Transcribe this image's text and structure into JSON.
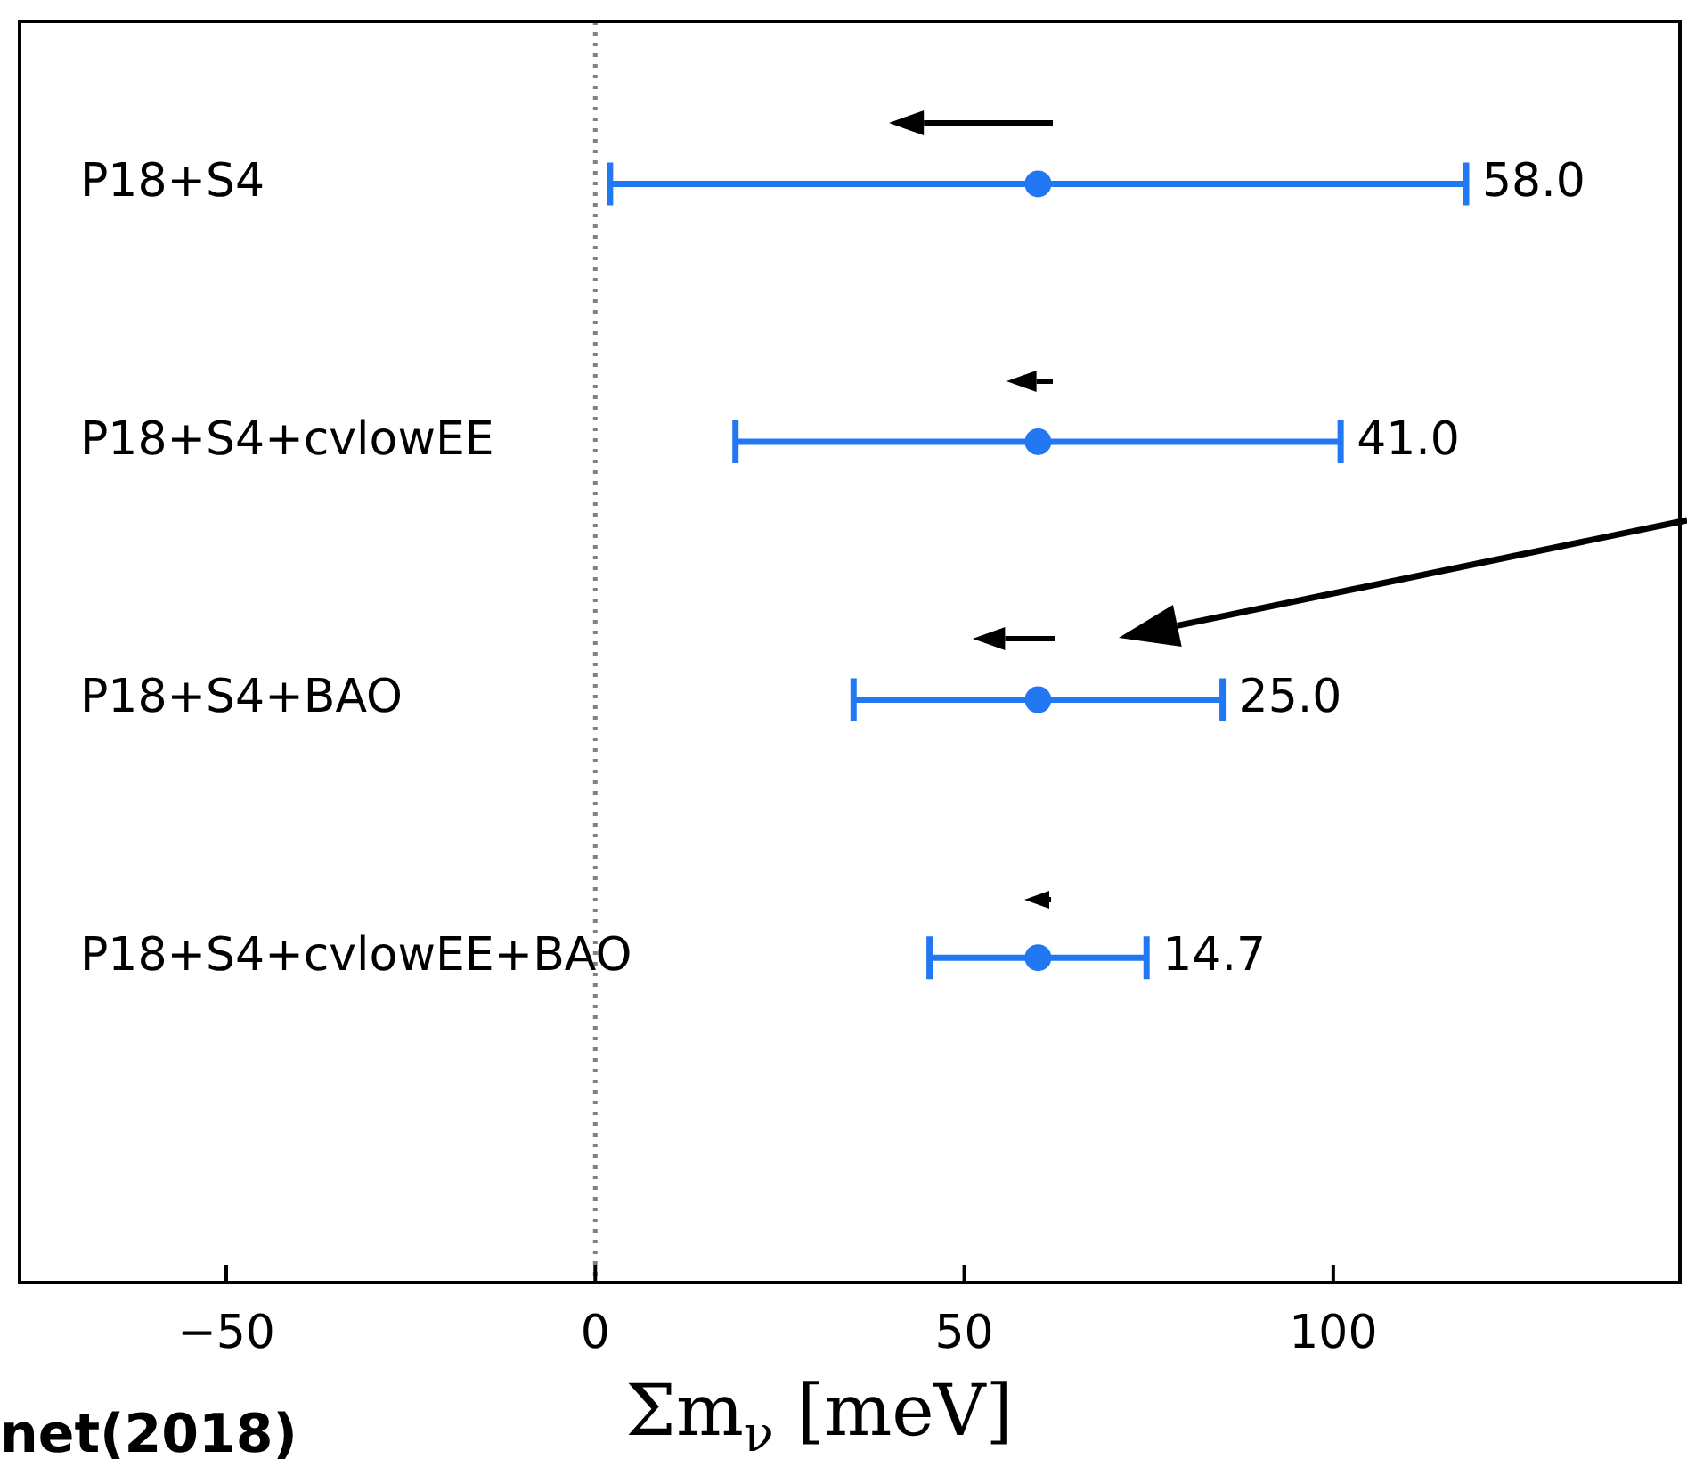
{
  "chart_data": {
    "type": "scatter",
    "orientation": "horizontal",
    "categories": [
      "P18+S4",
      "P18+S4+cvlowEE",
      "P18+S4+BAO",
      "P18+S4+cvlowEE+BAO"
    ],
    "values": [
      60,
      60,
      60,
      60
    ],
    "errors": [
      58,
      41,
      25,
      14.7
    ],
    "color": "#2277f2",
    "marker": "circle",
    "xlim": [
      -78,
      146
    ],
    "xticks": [
      -50,
      0,
      50,
      100
    ],
    "xlabel": "Σm$_{ν}$ [meV]",
    "ref_lines": [
      {
        "axis": "x",
        "value": 0,
        "color": "#808080",
        "line_style": "dotted"
      }
    ],
    "grid": false,
    "legend": false,
    "annotations": [
      {
        "text": "58.0",
        "x": 118,
        "y": "P18+S4"
      },
      {
        "text": "41.0",
        "x": 101,
        "y": "P18+S4+cvlowEE"
      },
      {
        "text": "25.0",
        "x": 85,
        "y": "P18+S4+BAO"
      },
      {
        "text": "14.7",
        "x": 74.7,
        "y": "P18+S4+cvlowEE+BAO"
      },
      "net(2018)"
    ]
  }
}
